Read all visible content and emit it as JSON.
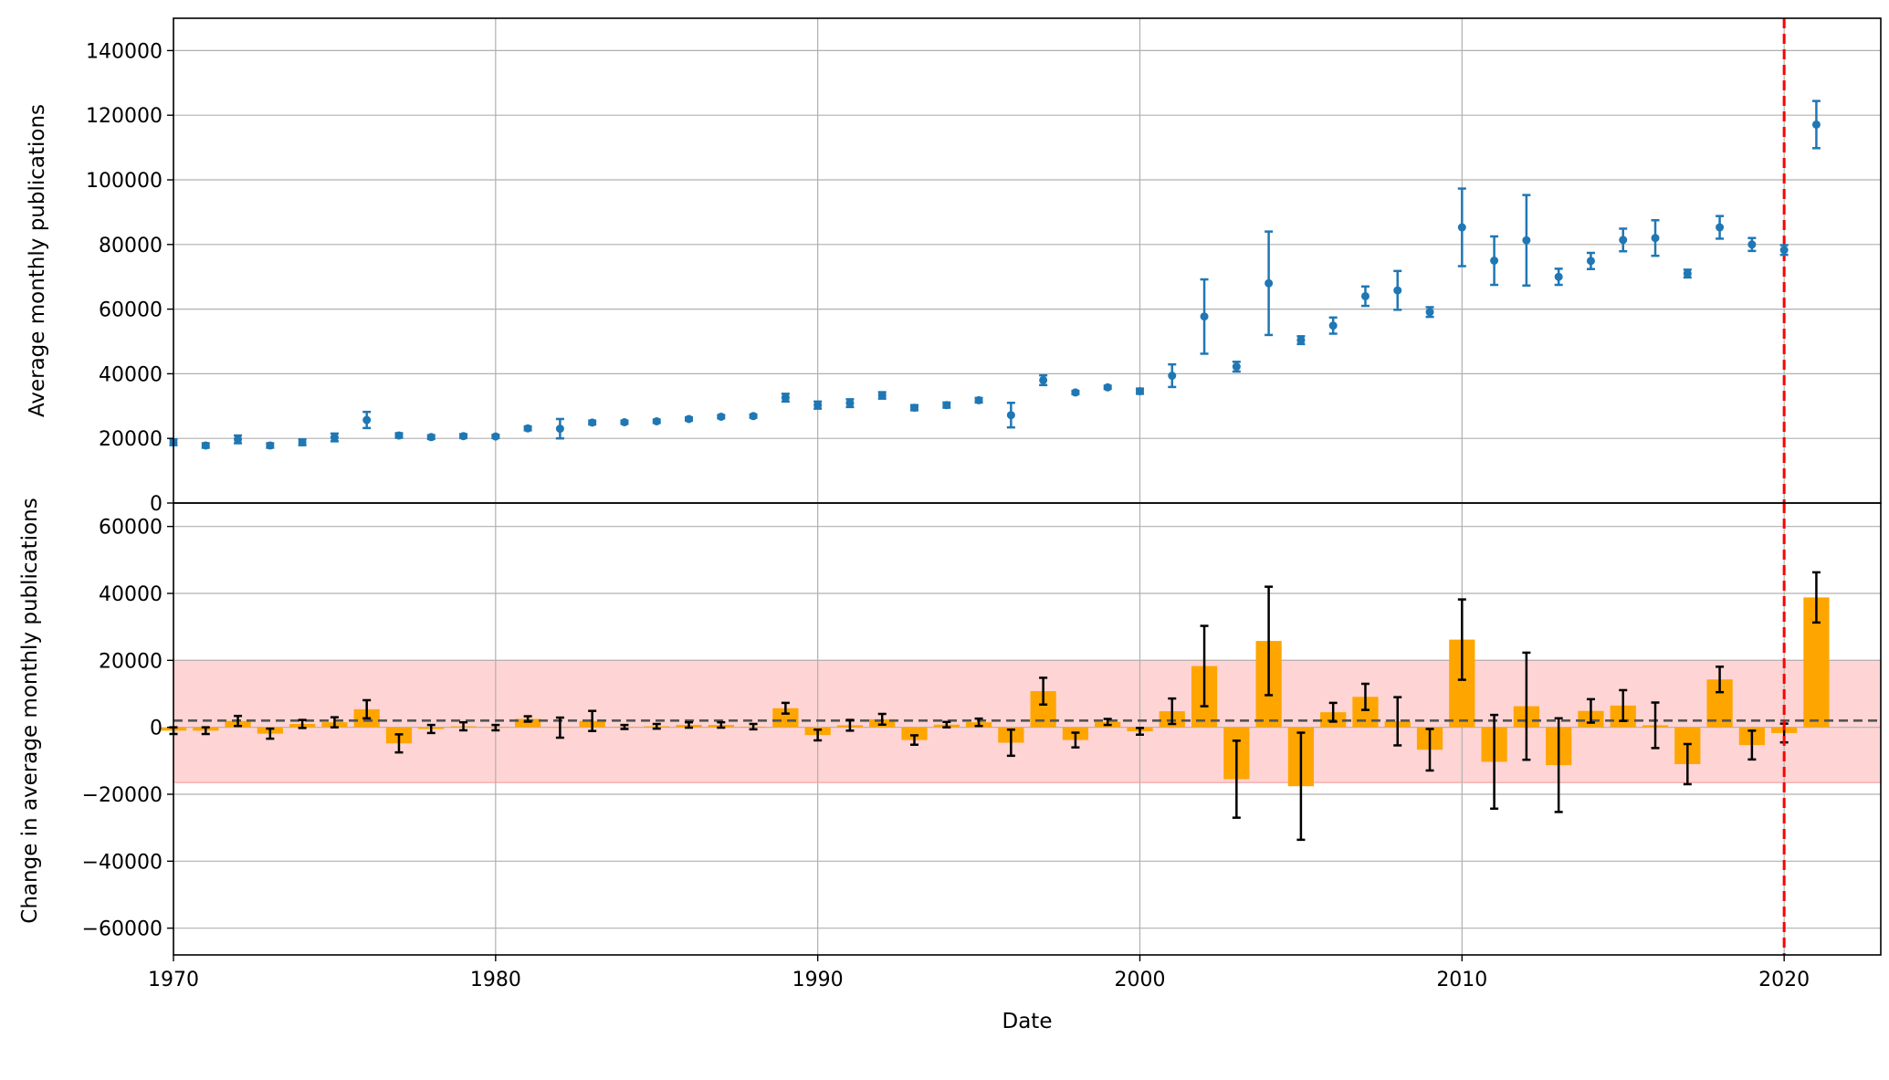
{
  "chart_data": [
    {
      "type": "scatter",
      "panel": "top",
      "ylabel": "Average monthly publications",
      "xlim": [
        1970,
        2023
      ],
      "ylim": [
        0,
        150000
      ],
      "xticks": [
        1970,
        1980,
        1990,
        2000,
        2010,
        2020
      ],
      "yticks": [
        0,
        20000,
        40000,
        60000,
        80000,
        100000,
        120000,
        140000
      ],
      "grid": true,
      "colors": {
        "points": "#1f77b4",
        "vline": "#ff0000"
      },
      "vline_x": 2020,
      "series": [
        {
          "x": [
            1970,
            1971,
            1972,
            1973,
            1974,
            1975,
            1976,
            1977,
            1978,
            1979,
            1980,
            1981,
            1982,
            1983,
            1984,
            1985,
            1986,
            1987,
            1988,
            1989,
            1990,
            1991,
            1992,
            1993,
            1994,
            1995,
            1996,
            1997,
            1998,
            1999,
            2000,
            2001,
            2002,
            2003,
            2004,
            2005,
            2006,
            2007,
            2008,
            2009,
            2010,
            2011,
            2012,
            2013,
            2014,
            2015,
            2016,
            2017,
            2018,
            2019,
            2020,
            2021
          ],
          "y": [
            18800,
            17800,
            19700,
            17800,
            18800,
            20300,
            25700,
            20900,
            20400,
            20700,
            20600,
            23100,
            23000,
            24900,
            25000,
            25300,
            26000,
            26700,
            26900,
            32600,
            30300,
            30900,
            33300,
            29500,
            30300,
            31800,
            27200,
            38000,
            34200,
            35800,
            34600,
            39400,
            57700,
            42200,
            68000,
            50400,
            54900,
            64000,
            65800,
            59100,
            85300,
            75000,
            81300,
            70000,
            74900,
            81400,
            82000,
            71000,
            85300,
            80000,
            78300,
            117100
          ],
          "err": [
            900,
            700,
            1200,
            700,
            900,
            1200,
            2500,
            700,
            600,
            600,
            500,
            600,
            3000,
            600,
            500,
            500,
            500,
            500,
            500,
            1200,
            1100,
            1200,
            1000,
            800,
            800,
            700,
            3800,
            1500,
            500,
            500,
            800,
            3500,
            11500,
            1500,
            16000,
            1200,
            2500,
            3000,
            6000,
            1500,
            12000,
            7500,
            14000,
            2500,
            2500,
            3500,
            5500,
            1200,
            3500,
            2000,
            1500,
            7300
          ]
        }
      ]
    },
    {
      "type": "bar",
      "panel": "bottom",
      "xlabel": "Date",
      "ylabel": "Change in average monthly publications",
      "xlim": [
        1970,
        2023
      ],
      "ylim": [
        -68000,
        67000
      ],
      "xticks": [
        1970,
        1980,
        1990,
        2000,
        2010,
        2020
      ],
      "yticks": [
        -60000,
        -40000,
        -20000,
        0,
        20000,
        40000,
        60000
      ],
      "grid": true,
      "mean_line": 2000,
      "band": [
        -16500,
        20000
      ],
      "colors": {
        "bars": "#ffa500",
        "errorbars": "#000000",
        "band": "#ffcccc",
        "mean_line": "#555555",
        "vline": "#ff0000"
      },
      "vline_x": 2020,
      "series": [
        {
          "x": [
            1970,
            1971,
            1972,
            1973,
            1974,
            1975,
            1976,
            1977,
            1978,
            1979,
            1980,
            1981,
            1982,
            1983,
            1984,
            1985,
            1986,
            1987,
            1988,
            1989,
            1990,
            1991,
            1992,
            1993,
            1994,
            1995,
            1996,
            1997,
            1998,
            1999,
            2000,
            2001,
            2002,
            2003,
            2004,
            2005,
            2006,
            2007,
            2008,
            2009,
            2010,
            2011,
            2012,
            2013,
            2014,
            2015,
            2016,
            2017,
            2018,
            2019,
            2020,
            2021
          ],
          "y": [
            -1000,
            -1000,
            1900,
            -1900,
            1000,
            1500,
            5400,
            -4800,
            -500,
            300,
            -100,
            2500,
            -100,
            1900,
            100,
            300,
            700,
            700,
            200,
            5700,
            -2300,
            600,
            2400,
            -3800,
            800,
            1500,
            -4600,
            10800,
            -3800,
            1600,
            -1200,
            4800,
            18300,
            -15500,
            25800,
            -17600,
            4500,
            9100,
            1800,
            -6700,
            26200,
            -10300,
            6300,
            -11300,
            4900,
            6500,
            600,
            -11000,
            14300,
            -5300,
            -1700,
            38800
          ],
          "err": [
            1000,
            1000,
            1500,
            1500,
            1200,
            1500,
            2700,
            2700,
            1200,
            1200,
            800,
            800,
            3000,
            3000,
            600,
            700,
            800,
            800,
            800,
            1600,
            1600,
            1600,
            1600,
            1400,
            800,
            1100,
            3900,
            4000,
            2200,
            900,
            1000,
            3800,
            12000,
            11500,
            16200,
            16000,
            2800,
            3900,
            7200,
            6200,
            12000,
            14000,
            16000,
            14000,
            3500,
            4600,
            6800,
            6000,
            3800,
            4300,
            2800,
            7500
          ]
        }
      ]
    }
  ]
}
